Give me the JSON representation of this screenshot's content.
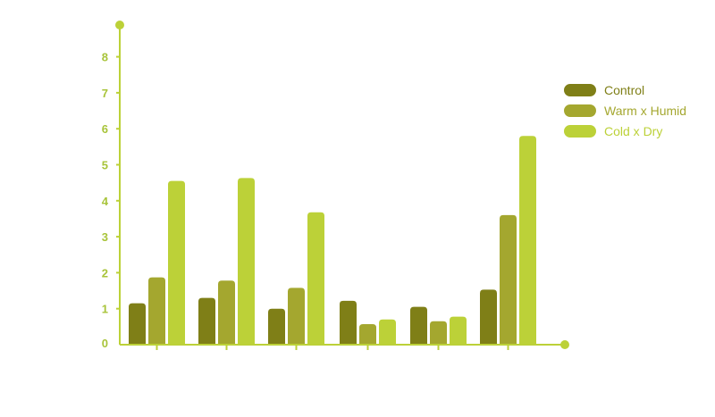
{
  "chart_data": {
    "type": "bar",
    "categories": [
      "",
      "",
      "",
      "",
      "",
      ""
    ],
    "series": [
      {
        "name": "Control",
        "color": "#7f7f17",
        "values": [
          1.15,
          1.3,
          1.0,
          1.22,
          1.05,
          1.53
        ]
      },
      {
        "name": "Warm x Humid",
        "color": "#a4a72f",
        "values": [
          1.87,
          1.78,
          1.58,
          0.57,
          0.65,
          3.6
        ]
      },
      {
        "name": "Cold x Dry",
        "color": "#bcd138",
        "values": [
          4.55,
          4.63,
          3.68,
          0.7,
          0.78,
          5.8
        ]
      }
    ],
    "y_ticks": [
      "0",
      "1",
      "2",
      "3",
      "4",
      "5",
      "6",
      "7",
      "8"
    ],
    "ylim": [
      0,
      8.8
    ],
    "axis_color": "#bcd138",
    "tick_label_color": "#a8c43a",
    "grid": false,
    "legend_position": "right"
  }
}
